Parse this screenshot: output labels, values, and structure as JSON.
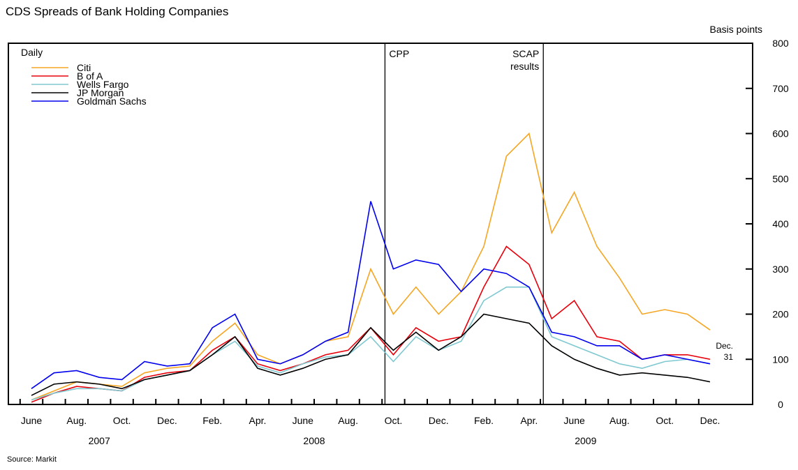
{
  "chart_data": {
    "type": "line",
    "title": "CDS Spreads of Bank Holding Companies",
    "y_axis_label": "Basis points",
    "legend_title": "Daily",
    "source": "Source: Markit",
    "x": [
      "2007-06",
      "2007-07",
      "2007-08",
      "2007-09",
      "2007-10",
      "2007-11",
      "2007-12",
      "2008-01",
      "2008-02",
      "2008-03",
      "2008-04",
      "2008-05",
      "2008-06",
      "2008-07",
      "2008-08",
      "2008-09",
      "2008-10",
      "2008-11",
      "2008-12",
      "2009-01",
      "2009-02",
      "2009-03",
      "2009-04",
      "2009-05",
      "2009-06",
      "2009-07",
      "2009-08",
      "2009-09",
      "2009-10",
      "2009-11",
      "2009-12"
    ],
    "xticks": [
      {
        "value": "2007-06",
        "label": "June"
      },
      {
        "value": "2007-08",
        "label": "Aug."
      },
      {
        "value": "2007-10",
        "label": "Oct."
      },
      {
        "value": "2007-12",
        "label": "Dec."
      },
      {
        "value": "2008-02",
        "label": "Feb."
      },
      {
        "value": "2008-04",
        "label": "Apr."
      },
      {
        "value": "2008-06",
        "label": "June"
      },
      {
        "value": "2008-08",
        "label": "Aug."
      },
      {
        "value": "2008-10",
        "label": "Oct."
      },
      {
        "value": "2008-12",
        "label": "Dec."
      },
      {
        "value": "2009-02",
        "label": "Feb."
      },
      {
        "value": "2009-04",
        "label": "Apr."
      },
      {
        "value": "2009-06",
        "label": "June"
      },
      {
        "value": "2009-08",
        "label": "Aug."
      },
      {
        "value": "2009-10",
        "label": "Oct."
      },
      {
        "value": "2009-12",
        "label": "Dec."
      }
    ],
    "years": [
      "2007",
      "2008",
      "2009"
    ],
    "ylim": [
      0,
      800
    ],
    "yticks": [
      0,
      100,
      200,
      300,
      400,
      500,
      600,
      700,
      800
    ],
    "events": [
      {
        "x": "2008-10",
        "label": "CPP"
      },
      {
        "x": "2009-05",
        "label": "SCAP results"
      }
    ],
    "end_annotation": "Dec. 31",
    "series": [
      {
        "name": "Citi",
        "color": "#f5a623",
        "values": [
          10,
          30,
          50,
          45,
          40,
          70,
          80,
          85,
          140,
          180,
          110,
          90,
          110,
          140,
          150,
          300,
          200,
          260,
          200,
          250,
          350,
          550,
          600,
          380,
          470,
          350,
          280,
          200,
          210,
          200,
          165
        ]
      },
      {
        "name": "B of A",
        "color": "#e8000b",
        "values": [
          5,
          25,
          40,
          35,
          30,
          60,
          70,
          75,
          120,
          150,
          90,
          75,
          90,
          110,
          120,
          170,
          110,
          170,
          140,
          150,
          260,
          350,
          310,
          190,
          230,
          150,
          140,
          100,
          110,
          110,
          100
        ]
      },
      {
        "name": "Wells Fargo",
        "color": "#7fc8d0",
        "values": [
          10,
          25,
          35,
          35,
          30,
          55,
          65,
          75,
          110,
          140,
          85,
          70,
          90,
          105,
          110,
          150,
          95,
          150,
          120,
          140,
          230,
          260,
          260,
          150,
          130,
          110,
          90,
          80,
          95,
          100,
          90
        ]
      },
      {
        "name": "JP Morgan",
        "color": "#000000",
        "values": [
          20,
          45,
          50,
          45,
          35,
          55,
          65,
          75,
          110,
          150,
          80,
          65,
          80,
          100,
          110,
          170,
          120,
          160,
          120,
          150,
          200,
          190,
          180,
          130,
          100,
          80,
          65,
          70,
          65,
          60,
          50
        ]
      },
      {
        "name": "Goldman Sachs",
        "color": "#0000ee",
        "values": [
          35,
          70,
          75,
          60,
          55,
          95,
          85,
          90,
          170,
          200,
          100,
          90,
          110,
          140,
          160,
          450,
          300,
          320,
          310,
          250,
          300,
          290,
          260,
          160,
          150,
          130,
          130,
          100,
          110,
          100,
          90
        ]
      }
    ]
  }
}
